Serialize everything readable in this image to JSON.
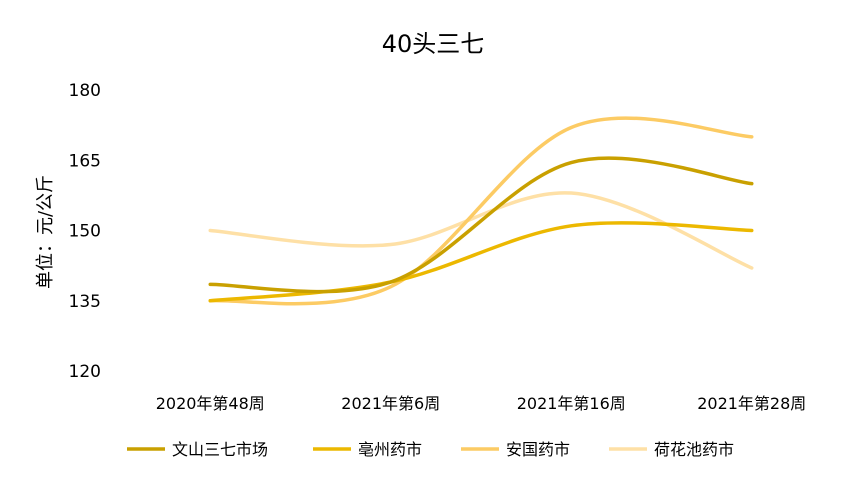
{
  "chart_data": {
    "type": "line",
    "title": "40头三七",
    "ylabel": "单位：元/公斤",
    "xlabel": "",
    "categories": [
      "2020年第48周",
      "2021年第6周",
      "2021年第16周",
      "2021年第28周"
    ],
    "ylim": [
      120,
      180
    ],
    "yticks": [
      "120",
      "135",
      "150",
      "165",
      "180"
    ],
    "grid": false,
    "legend_position": "bottom",
    "smooth": true,
    "series": [
      {
        "name": "文山三七市场",
        "color": "#C9A000",
        "values": [
          138.5,
          139,
          164.5,
          160
        ]
      },
      {
        "name": "亳州药市",
        "color": "#ECB800",
        "values": [
          135,
          139,
          151,
          150
        ]
      },
      {
        "name": "安国药市",
        "color": "#FCCB64",
        "values": [
          135,
          138,
          172,
          170
        ]
      },
      {
        "name": "荷花池药市",
        "color": "#FEE0A6",
        "values": [
          150,
          147,
          158,
          142
        ]
      }
    ]
  }
}
